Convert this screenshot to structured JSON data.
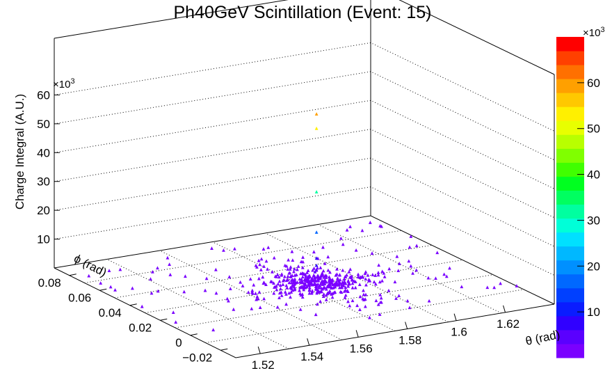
{
  "chart_data": {
    "type": "scatter",
    "title": "Ph40GeV Scintillation (Event: 15)",
    "zlabel": "Charge Integral (A.U.)",
    "xlabel": "θ (rad)",
    "ylabel": "ϕ (rad)",
    "x_ticks": [
      "1.52",
      "1.54",
      "1.56",
      "1.58",
      "1.6",
      "1.62"
    ],
    "y_ticks": [
      "−0.02",
      "0",
      "0.02",
      "0.04",
      "0.06",
      "0.08"
    ],
    "z_ticks": [
      "10",
      "20",
      "30",
      "40",
      "50",
      "60"
    ],
    "z_exponent": "×10",
    "z_exponent_power": "3",
    "colorbar_ticks": [
      "10",
      "20",
      "30",
      "40",
      "50",
      "60"
    ],
    "colorbar_exponent": "×10",
    "colorbar_exponent_power": "3",
    "xlim": [
      1.51,
      1.64
    ],
    "ylim": [
      -0.03,
      0.09
    ],
    "zlim": [
      0,
      70
    ],
    "colorbar_range": [
      0,
      70
    ],
    "grid": true,
    "colormap": "rainbow",
    "peak_points": [
      {
        "x": 1.58,
        "y": 0.03,
        "z": 59
      },
      {
        "x": 1.58,
        "y": 0.03,
        "z": 54
      },
      {
        "x": 1.58,
        "y": 0.03,
        "z": 32
      },
      {
        "x": 1.58,
        "y": 0.03,
        "z": 18
      },
      {
        "x": 1.58,
        "y": 0.03,
        "z": 9
      },
      {
        "x": 1.58,
        "y": 0.03,
        "z": 6.5
      },
      {
        "x": 1.58,
        "y": 0.03,
        "z": 5
      },
      {
        "x": 1.58,
        "y": 0.031,
        "z": 4
      },
      {
        "x": 1.579,
        "y": 0.03,
        "z": 3
      },
      {
        "x": 1.581,
        "y": 0.029,
        "z": 2.5
      },
      {
        "x": 1.58,
        "y": 0.031,
        "z": 2
      },
      {
        "x": 1.579,
        "y": 0.029,
        "z": 1.5
      }
    ],
    "background_cluster": {
      "center_x": 1.58,
      "center_y": 0.03,
      "sigma_x": 0.012,
      "sigma_y": 0.012,
      "z": 0.5,
      "count": 420
    },
    "background_sparse": {
      "count": 90,
      "z": 0.5
    }
  }
}
